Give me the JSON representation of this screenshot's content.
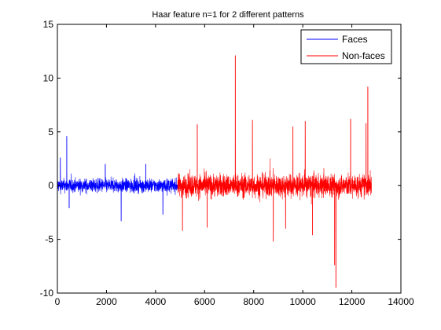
{
  "chart_data": {
    "type": "line",
    "title": "Haar feature n=1 for 2 different patterns",
    "xlabel": "",
    "ylabel": "",
    "xlim": [
      0,
      14000
    ],
    "ylim": [
      -10,
      15
    ],
    "xticks": [
      0,
      2000,
      4000,
      6000,
      8000,
      10000,
      12000,
      14000
    ],
    "yticks": [
      -10,
      -5,
      0,
      5,
      10,
      15
    ],
    "grid": false,
    "legend_position": "top-right",
    "series": [
      {
        "name": "Faces",
        "color": "#0000ff",
        "x_range": [
          1,
          4900
        ],
        "typical_range": [
          -1.2,
          1.2
        ],
        "peaks": [
          {
            "x": 380,
            "y": 4.6
          },
          {
            "x": 120,
            "y": 2.6
          },
          {
            "x": 1950,
            "y": 2.0
          },
          {
            "x": 3600,
            "y": 2.0
          },
          {
            "x": 2600,
            "y": -3.3
          },
          {
            "x": 4300,
            "y": -2.7
          },
          {
            "x": 480,
            "y": -2.1
          }
        ]
      },
      {
        "name": "Non-faces",
        "color": "#ff0000",
        "x_range": [
          4900,
          12800
        ],
        "typical_range": [
          -2.0,
          2.0
        ],
        "peaks": [
          {
            "x": 7250,
            "y": 12.1
          },
          {
            "x": 12650,
            "y": 9.2
          },
          {
            "x": 12580,
            "y": 5.8
          },
          {
            "x": 5700,
            "y": 5.7
          },
          {
            "x": 11950,
            "y": 6.2
          },
          {
            "x": 7950,
            "y": 6.1
          },
          {
            "x": 9600,
            "y": 5.5
          },
          {
            "x": 10100,
            "y": 6.0
          },
          {
            "x": 11300,
            "y": -7.4
          },
          {
            "x": 11350,
            "y": -9.5
          },
          {
            "x": 8800,
            "y": -5.2
          },
          {
            "x": 10400,
            "y": -4.6
          },
          {
            "x": 5100,
            "y": -4.2
          },
          {
            "x": 6100,
            "y": -3.9
          },
          {
            "x": 9300,
            "y": -4.0
          }
        ]
      }
    ]
  }
}
